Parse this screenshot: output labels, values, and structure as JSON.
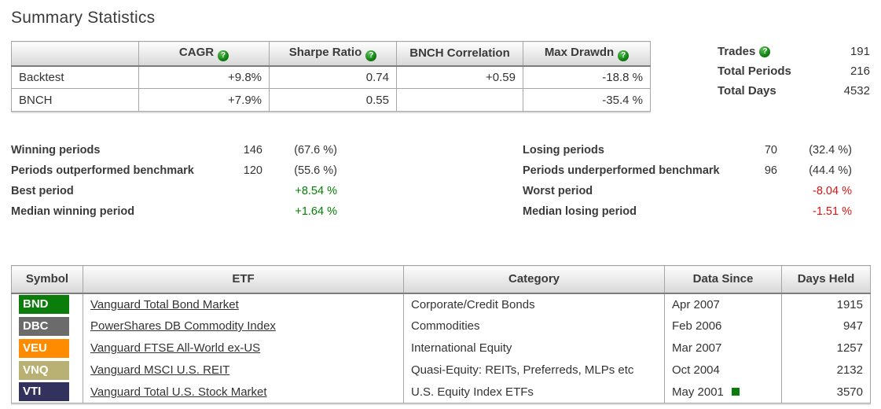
{
  "page": {
    "title": "Summary Statistics"
  },
  "colors": {
    "positive": "#008000",
    "negative": "#dd1111",
    "help_icon_green": "#0d7e0d",
    "marker_green": "#0a7d0a",
    "header_gradient_bottom": "#d8d8d8",
    "table_border": "#a6a6a6"
  },
  "icons": {
    "help": "?"
  },
  "performance_table": {
    "columns": [
      {
        "label": "",
        "help": false
      },
      {
        "label": "CAGR",
        "help": true
      },
      {
        "label": "Sharpe Ratio",
        "help": true
      },
      {
        "label": "BNCH Correlation",
        "help": false
      },
      {
        "label": "Max Drawdn",
        "help": true
      }
    ],
    "rows": [
      {
        "name": "Backtest",
        "cagr": "+9.8%",
        "sharpe": "0.74",
        "bnch_correlation": "+0.59",
        "max_drawdown": "-18.8 %"
      },
      {
        "name": "BNCH",
        "cagr": "+7.9%",
        "sharpe": "0.55",
        "bnch_correlation": "",
        "max_drawdown": "-35.4 %"
      }
    ]
  },
  "totals": {
    "rows": [
      {
        "label": "Trades",
        "value": "191",
        "help": true
      },
      {
        "label": "Total Periods",
        "value": "216",
        "help": false
      },
      {
        "label": "Total Days",
        "value": "4532",
        "help": false
      }
    ]
  },
  "period_stats": {
    "left": [
      {
        "label": "Winning periods",
        "count": "146",
        "pct": "(67.6 %)"
      },
      {
        "label": "Periods outperformed benchmark",
        "count": "120",
        "pct": "(55.6 %)"
      },
      {
        "label": "Best period",
        "count": "",
        "pct": "+8.54 %",
        "tone": "positive"
      },
      {
        "label": "Median winning period",
        "count": "",
        "pct": "+1.64 %",
        "tone": "positive"
      }
    ],
    "right": [
      {
        "label": "Losing periods",
        "count": "70",
        "pct": "(32.4 %)"
      },
      {
        "label": "Periods underperformed benchmark",
        "count": "96",
        "pct": "(44.4 %)"
      },
      {
        "label": "Worst period",
        "count": "",
        "pct": "-8.04 %",
        "tone": "negative"
      },
      {
        "label": "Median losing period",
        "count": "",
        "pct": "-1.51 %",
        "tone": "negative"
      }
    ]
  },
  "etf_table": {
    "columns": [
      "Symbol",
      "ETF",
      "Category",
      "Data Since",
      "Days Held"
    ],
    "rows": [
      {
        "symbol": "BND",
        "symbol_color": "#0a7d0a",
        "etf": "Vanguard Total Bond Market",
        "category": "Corporate/Credit Bonds",
        "data_since": "Apr 2007",
        "days_held": "1915",
        "marker": false
      },
      {
        "symbol": "DBC",
        "symbol_color": "#6b6b6b",
        "etf": "PowerShares DB Commodity Index",
        "category": "Commodities",
        "data_since": "Feb 2006",
        "days_held": "947",
        "marker": false
      },
      {
        "symbol": "VEU",
        "symbol_color": "#ff8c00",
        "etf": "Vanguard FTSE All-World ex-US",
        "category": "International Equity",
        "data_since": "Mar 2007",
        "days_held": "1257",
        "marker": false
      },
      {
        "symbol": "VNQ",
        "symbol_color": "#b8b173",
        "etf": "Vanguard MSCI U.S. REIT",
        "category": "Quasi-Equity: REITs, Preferreds, MLPs etc",
        "data_since": "Oct 2004",
        "days_held": "2132",
        "marker": false
      },
      {
        "symbol": "VTI",
        "symbol_color": "#32325c",
        "etf": "Vanguard Total U.S. Stock Market",
        "category": "U.S. Equity Index ETFs",
        "data_since": "May 2001",
        "days_held": "3570",
        "marker": true
      }
    ]
  }
}
